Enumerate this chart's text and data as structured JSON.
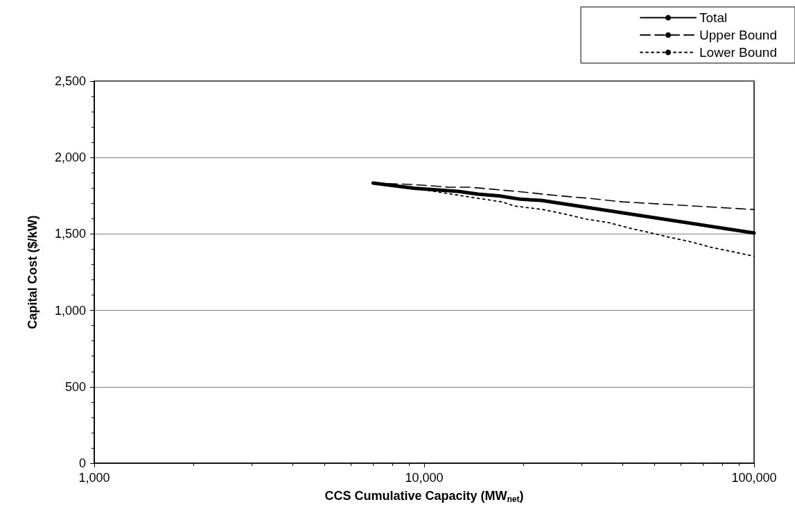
{
  "chart_data": {
    "type": "line",
    "xlabel": "CCS Cumulative Capacity (MW$_{net}$)",
    "ylabel": "Capital Cost ($/kW)",
    "log": "x",
    "grid": "y",
    "legend": "top right",
    "marker": "none",
    "xlim": [
      1000,
      100000
    ],
    "xticks": [
      {
        "value": 1000,
        "label": "1,000"
      },
      {
        "value": 10000,
        "label": "10,000"
      },
      {
        "value": 100000,
        "label": "100,000"
      }
    ],
    "ylim": [
      0,
      2500
    ],
    "yticks": [
      0,
      500,
      {
        "value": 1000,
        "label": "1,000"
      },
      {
        "value": 1500,
        "label": "1,500"
      },
      {
        "value": 2000,
        "label": "2,000"
      },
      {
        "value": 2500,
        "label": "2,500"
      }
    ],
    "series": [
      {
        "name": "Total",
        "color": "#000000",
        "line_style": "solid",
        "x": [
          7000,
          9330,
          12680,
          14580,
          16870,
          19640,
          22650,
          100000
        ],
        "values": [
          1833,
          1799,
          1779,
          1760,
          1749,
          1727,
          1720,
          1506
        ]
      },
      {
        "name": "Upper Bound",
        "color": "#000000",
        "line_style": "dashed",
        "x": [
          7000,
          9200,
          11900,
          13700,
          15900,
          20000,
          25300,
          31600,
          40000,
          100000
        ],
        "values": [
          1833,
          1824,
          1806,
          1806,
          1794,
          1774,
          1751,
          1733,
          1710,
          1660
        ]
      },
      {
        "name": "Lower Bound",
        "color": "#000000",
        "line_style": "dotted",
        "x": [
          7000,
          9330,
          12680,
          14580,
          17200,
          18800,
          22870,
          26830,
          31000,
          36300,
          41250,
          48500,
          55000,
          64500,
          74300,
          86000,
          100000
        ],
        "values": [
          1833,
          1799,
          1754,
          1733,
          1710,
          1683,
          1660,
          1629,
          1597,
          1574,
          1542,
          1508,
          1480,
          1448,
          1412,
          1384,
          1354
        ]
      }
    ]
  }
}
